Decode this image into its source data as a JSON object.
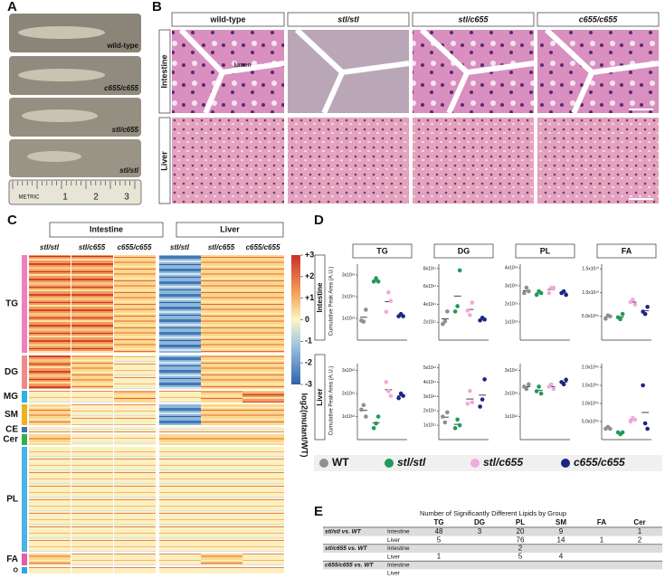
{
  "panels": {
    "a": "A",
    "b": "B",
    "c": "C",
    "d": "D",
    "e": "E"
  },
  "fish": {
    "labels": [
      "wild-type",
      "c655/c655",
      "stl/c655",
      "stl/stl"
    ],
    "ruler": [
      "METRIC",
      "1",
      "2",
      "3"
    ]
  },
  "histology": {
    "columns": [
      "wild-type",
      "stl/stl",
      "stl/c655",
      "c655/c655"
    ],
    "rows": [
      "Intestine",
      "Liver"
    ],
    "annotation": "lumen"
  },
  "heatmap": {
    "tissues": [
      "Intestine",
      "Liver"
    ],
    "genotypes": [
      "stl/stl",
      "stl/c655",
      "c655/c655"
    ],
    "groups": [
      "TG",
      "DG",
      "MG",
      "SM",
      "CE",
      "Cer",
      "PL",
      "FA",
      "O"
    ],
    "colorbar_ticks": [
      {
        "value": 3,
        "label": "+3"
      },
      {
        "value": 2,
        "label": "+2"
      },
      {
        "value": 1,
        "label": "+1"
      },
      0,
      -1,
      -2,
      -3
    ],
    "colorbar_label": "log2(mutant/WT)"
  },
  "lipid_plots": {
    "y_label": "Cumulative Peak Area (A.U.)",
    "rows": [
      "Intestine",
      "Liver"
    ],
    "titles": [
      "TG",
      "DG",
      "PL",
      "FA"
    ],
    "genotypes": [
      {
        "name": "WT",
        "color": "#8f8f8f"
      },
      {
        "name": "stl/stl",
        "color": "#1f9a5a"
      },
      {
        "name": "stl/c655",
        "color": "#f2a9dc"
      },
      {
        "name": "c655/c655",
        "color": "#1b2585"
      }
    ],
    "plots": [
      {
        "ylim": [
          0,
          35000000000000.0
        ],
        "yticks": [
          {
            "value": 10000000000000.0,
            "label": "1x10¹³"
          },
          {
            "value": 20000000000000.0,
            "label": "2x10¹³"
          },
          {
            "value": 30000000000000.0,
            "label": "3x10¹³"
          }
        ],
        "points": [
          [
            9000000000000.0,
            8500000000000.0,
            14000000000000.0
          ],
          [
            27000000000000.0,
            28500000000000.0,
            27000000000000.0
          ],
          [
            13000000000000.0,
            22000000000000.0,
            18000000000000.0
          ],
          [
            11000000000000.0,
            12000000000000.0,
            11000000000000.0
          ]
        ]
      },
      {
        "ylim": [
          0,
          850000000000.0
        ],
        "yticks": [
          {
            "value": 200000000000.0,
            "label": "2x10¹¹"
          },
          {
            "value": 400000000000.0,
            "label": "4x10¹¹"
          },
          {
            "value": 600000000000.0,
            "label": "6x10¹¹"
          },
          {
            "value": 800000000000.0,
            "label": "8x10¹¹"
          }
        ],
        "points": [
          [
            180000000000.0,
            210000000000.0,
            320000000000.0
          ],
          [
            320000000000.0,
            380000000000.0,
            780000000000.0
          ],
          [
            330000000000.0,
            280000000000.0,
            420000000000.0
          ],
          [
            220000000000.0,
            250000000000.0,
            230000000000.0
          ]
        ]
      },
      {
        "ylim": [
          0,
          42000000000000.0
        ],
        "yticks": [
          {
            "value": 10000000000000.0,
            "label": "1x10¹³"
          },
          {
            "value": 20000000000000.0,
            "label": "2x10¹³"
          },
          {
            "value": 30000000000000.0,
            "label": "3x10¹³"
          },
          {
            "value": 40000000000000.0,
            "label": "4x10¹³"
          }
        ],
        "points": [
          [
            26000000000000.0,
            29000000000000.0,
            27000000000000.0
          ],
          [
            25000000000000.0,
            27000000000000.0,
            26000000000000.0
          ],
          [
            26000000000000.0,
            29000000000000.0,
            29000000000000.0
          ],
          [
            26000000000000.0,
            27000000000000.0,
            25000000000000.0
          ]
        ]
      },
      {
        "ylim": [
          0,
          16000000000.0
        ],
        "yticks": [
          {
            "value": 5000000000.0,
            "label": "5.0x10⁰⁹"
          },
          {
            "value": 10000000000.0,
            "label": "1.0x10¹⁰"
          },
          {
            "value": 15000000000.0,
            "label": "1.5x10¹⁰"
          }
        ],
        "points": [
          [
            4500000000.0,
            5200000000.0,
            5000000000.0
          ],
          [
            4800000000.0,
            4400000000.0,
            5500000000.0
          ],
          [
            8000000000.0,
            8500000000.0,
            7500000000.0
          ],
          [
            6000000000.0,
            5500000000.0,
            7000000000.0
          ]
        ]
      },
      {
        "ylim": [
          0,
          3300000000000.0
        ],
        "yticks": [
          {
            "value": 1000000000000.0,
            "label": "1x10¹²"
          },
          {
            "value": 2000000000000.0,
            "label": "2x10¹²"
          },
          {
            "value": 3000000000000.0,
            "label": "3x10¹²"
          }
        ],
        "points": [
          [
            1300000000000.0,
            1500000000000.0,
            1000000000000.0
          ],
          [
            500000000000.0,
            700000000000.0,
            1000000000000.0
          ],
          [
            2500000000000.0,
            2100000000000.0,
            1900000000000.0
          ],
          [
            1800000000000.0,
            2000000000000.0,
            1900000000000.0
          ]
        ]
      },
      {
        "ylim": [
          0,
          530000000000.0
        ],
        "yticks": [
          {
            "value": 100000000000.0,
            "label": "1x10¹¹"
          },
          {
            "value": 200000000000.0,
            "label": "2x10¹¹"
          },
          {
            "value": 300000000000.0,
            "label": "3x10¹¹"
          },
          {
            "value": 400000000000.0,
            "label": "4x10¹¹"
          },
          {
            "value": 500000000000.0,
            "label": "5x10¹¹"
          }
        ],
        "points": [
          [
            160000000000.0,
            120000000000.0,
            190000000000.0
          ],
          [
            80000000000.0,
            140000000000.0,
            100000000000.0
          ],
          [
            250000000000.0,
            340000000000.0,
            260000000000.0
          ],
          [
            230000000000.0,
            280000000000.0,
            420000000000.0
          ]
        ]
      },
      {
        "ylim": [
          0,
          3300000000000.0
        ],
        "yticks": [
          {
            "value": 1000000000000.0,
            "label": "1x10¹²"
          },
          {
            "value": 2000000000000.0,
            "label": "2x10¹²"
          },
          {
            "value": 3000000000000.0,
            "label": "3x10¹²"
          }
        ],
        "points": [
          [
            2300000000000.0,
            2200000000000.0,
            2400000000000.0
          ],
          [
            2100000000000.0,
            2300000000000.0,
            2000000000000.0
          ],
          [
            2300000000000.0,
            2400000000000.0,
            2200000000000.0
          ],
          [
            2500000000000.0,
            2400000000000.0,
            2600000000000.0
          ]
        ]
      },
      {
        "ylim": [
          0,
          2100000000.0
        ],
        "yticks": [
          {
            "value": 500000000.0,
            "label": "5.0x10⁰⁸"
          },
          {
            "value": 1000000000.0,
            "label": "1.0x10⁰⁹"
          },
          {
            "value": 1500000000.0,
            "label": "1.5x10⁰⁹"
          },
          {
            "value": 2000000000.0,
            "label": "2.0x10⁰⁹"
          }
        ],
        "points": [
          [
            300000000.0,
            350000000.0,
            300000000.0
          ],
          [
            200000000.0,
            150000000.0,
            200000000.0
          ],
          [
            500000000.0,
            600000000.0,
            550000000.0
          ],
          [
            1500000000.0,
            450000000.0,
            300000000.0
          ]
        ]
      }
    ]
  },
  "table": {
    "title": "Number of Significantly Different Lipids by Group",
    "columns": [
      "TG",
      "DG",
      "PL",
      "SM",
      "FA",
      "Cer"
    ],
    "rows": [
      {
        "comparison": "stl/stl vs. WT",
        "tissue": "Intestine",
        "cells": [
          48,
          3,
          20,
          9,
          null,
          1
        ]
      },
      {
        "tissue": "Liver",
        "cells": [
          5,
          null,
          76,
          14,
          1,
          2
        ]
      },
      {
        "comparison": "stl/c655 vs. WT",
        "tissue": "Intestine",
        "cells": [
          null,
          null,
          2,
          null,
          null,
          null
        ]
      },
      {
        "tissue": "Liver",
        "cells": [
          1,
          null,
          5,
          4,
          null,
          null
        ]
      },
      {
        "comparison": "c655/c655 vs. WT",
        "tissue": "Intestine",
        "cells": [
          null,
          null,
          null,
          null,
          null,
          null
        ]
      },
      {
        "tissue": "Liver",
        "cells": [
          null,
          null,
          null,
          null,
          null,
          null
        ]
      }
    ]
  }
}
